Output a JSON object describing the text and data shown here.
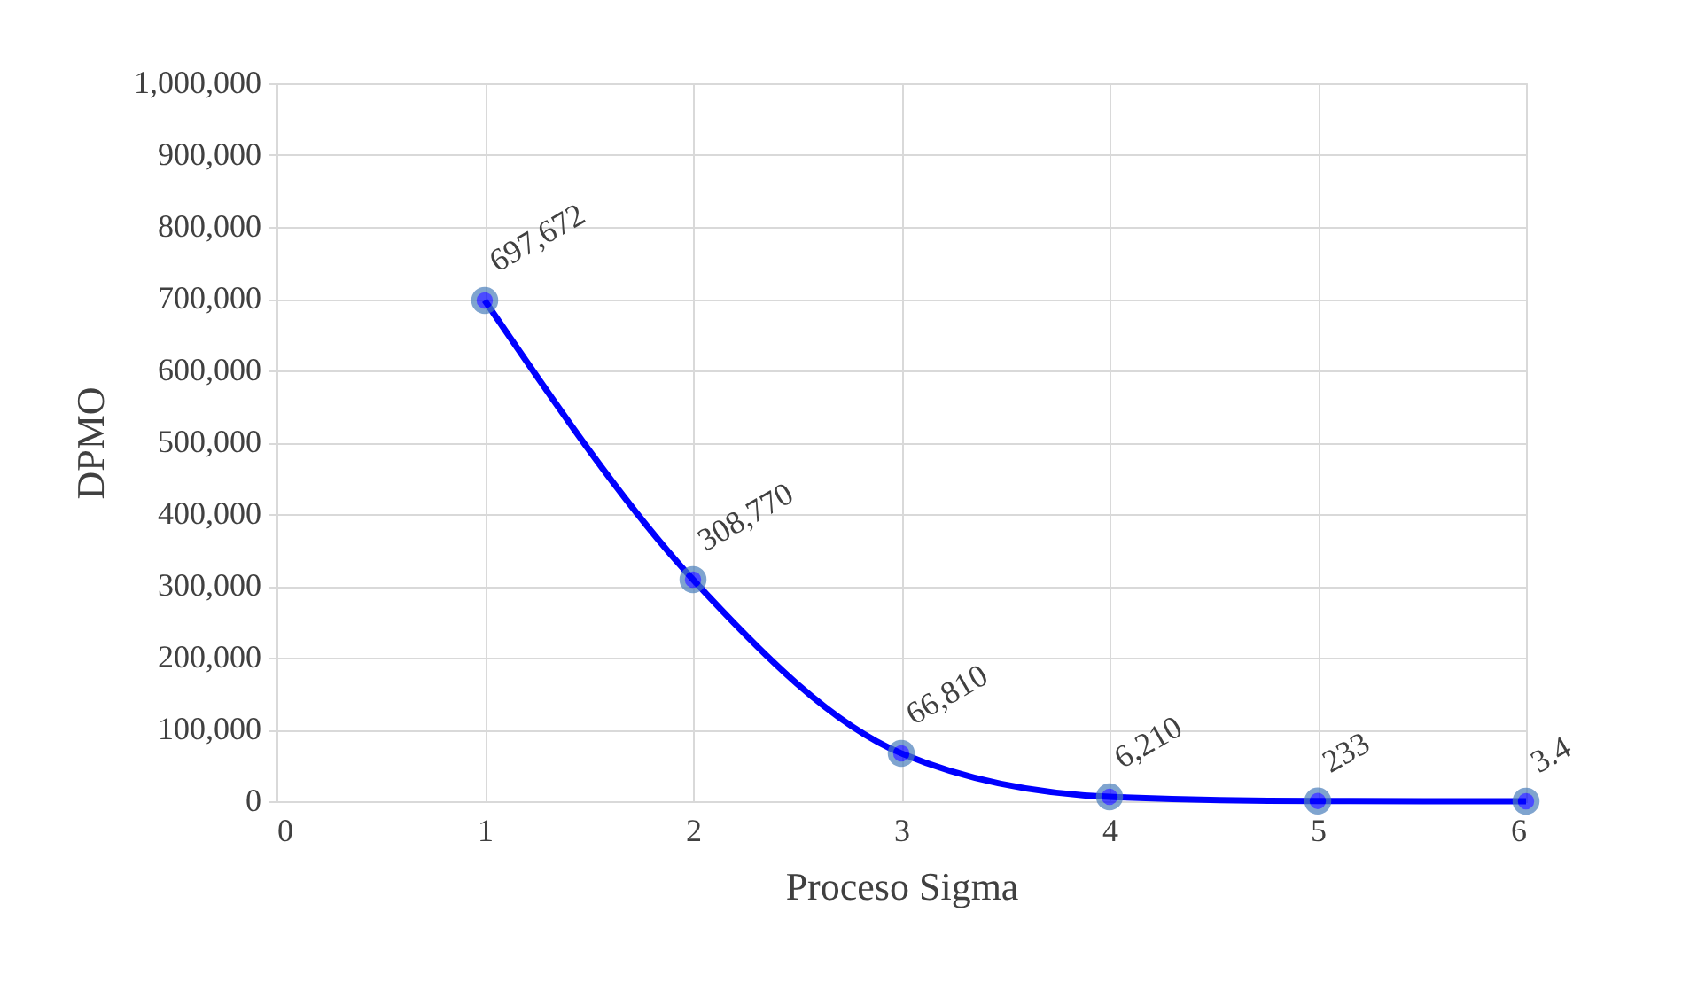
{
  "chart_data": {
    "type": "line",
    "xlabel": "Proceso Sigma",
    "ylabel": "DPMO",
    "x": [
      1,
      2,
      3,
      4,
      5,
      6
    ],
    "series": [
      {
        "color": "#0000ff",
        "values": [
          697672,
          308770,
          66810,
          6210,
          233,
          3.4
        ],
        "value_labels": [
          "697,672",
          "308,770",
          "66,810",
          "6,210",
          "233",
          "3.4"
        ]
      }
    ],
    "xlim": [
      0,
      6
    ],
    "xticks": [
      0,
      1,
      2,
      3,
      4,
      5,
      6
    ],
    "ylim": [
      0,
      1000000
    ],
    "yticks": [
      0,
      {
        "value": 100000,
        "label": "100,000"
      },
      {
        "value": 200000,
        "label": "200,000"
      },
      {
        "value": 300000,
        "label": "300,000"
      },
      {
        "value": 400000,
        "label": "400,000"
      },
      {
        "value": 500000,
        "label": "500,000"
      },
      {
        "value": 600000,
        "label": "600,000"
      },
      {
        "value": 700000,
        "label": "700,000"
      },
      {
        "value": 800000,
        "label": "800,000"
      },
      {
        "value": 900000,
        "label": "900,000"
      },
      {
        "value": 1000000,
        "label": "1,000,000"
      }
    ],
    "grid": true,
    "marker": "circle",
    "line_style": "solid"
  }
}
